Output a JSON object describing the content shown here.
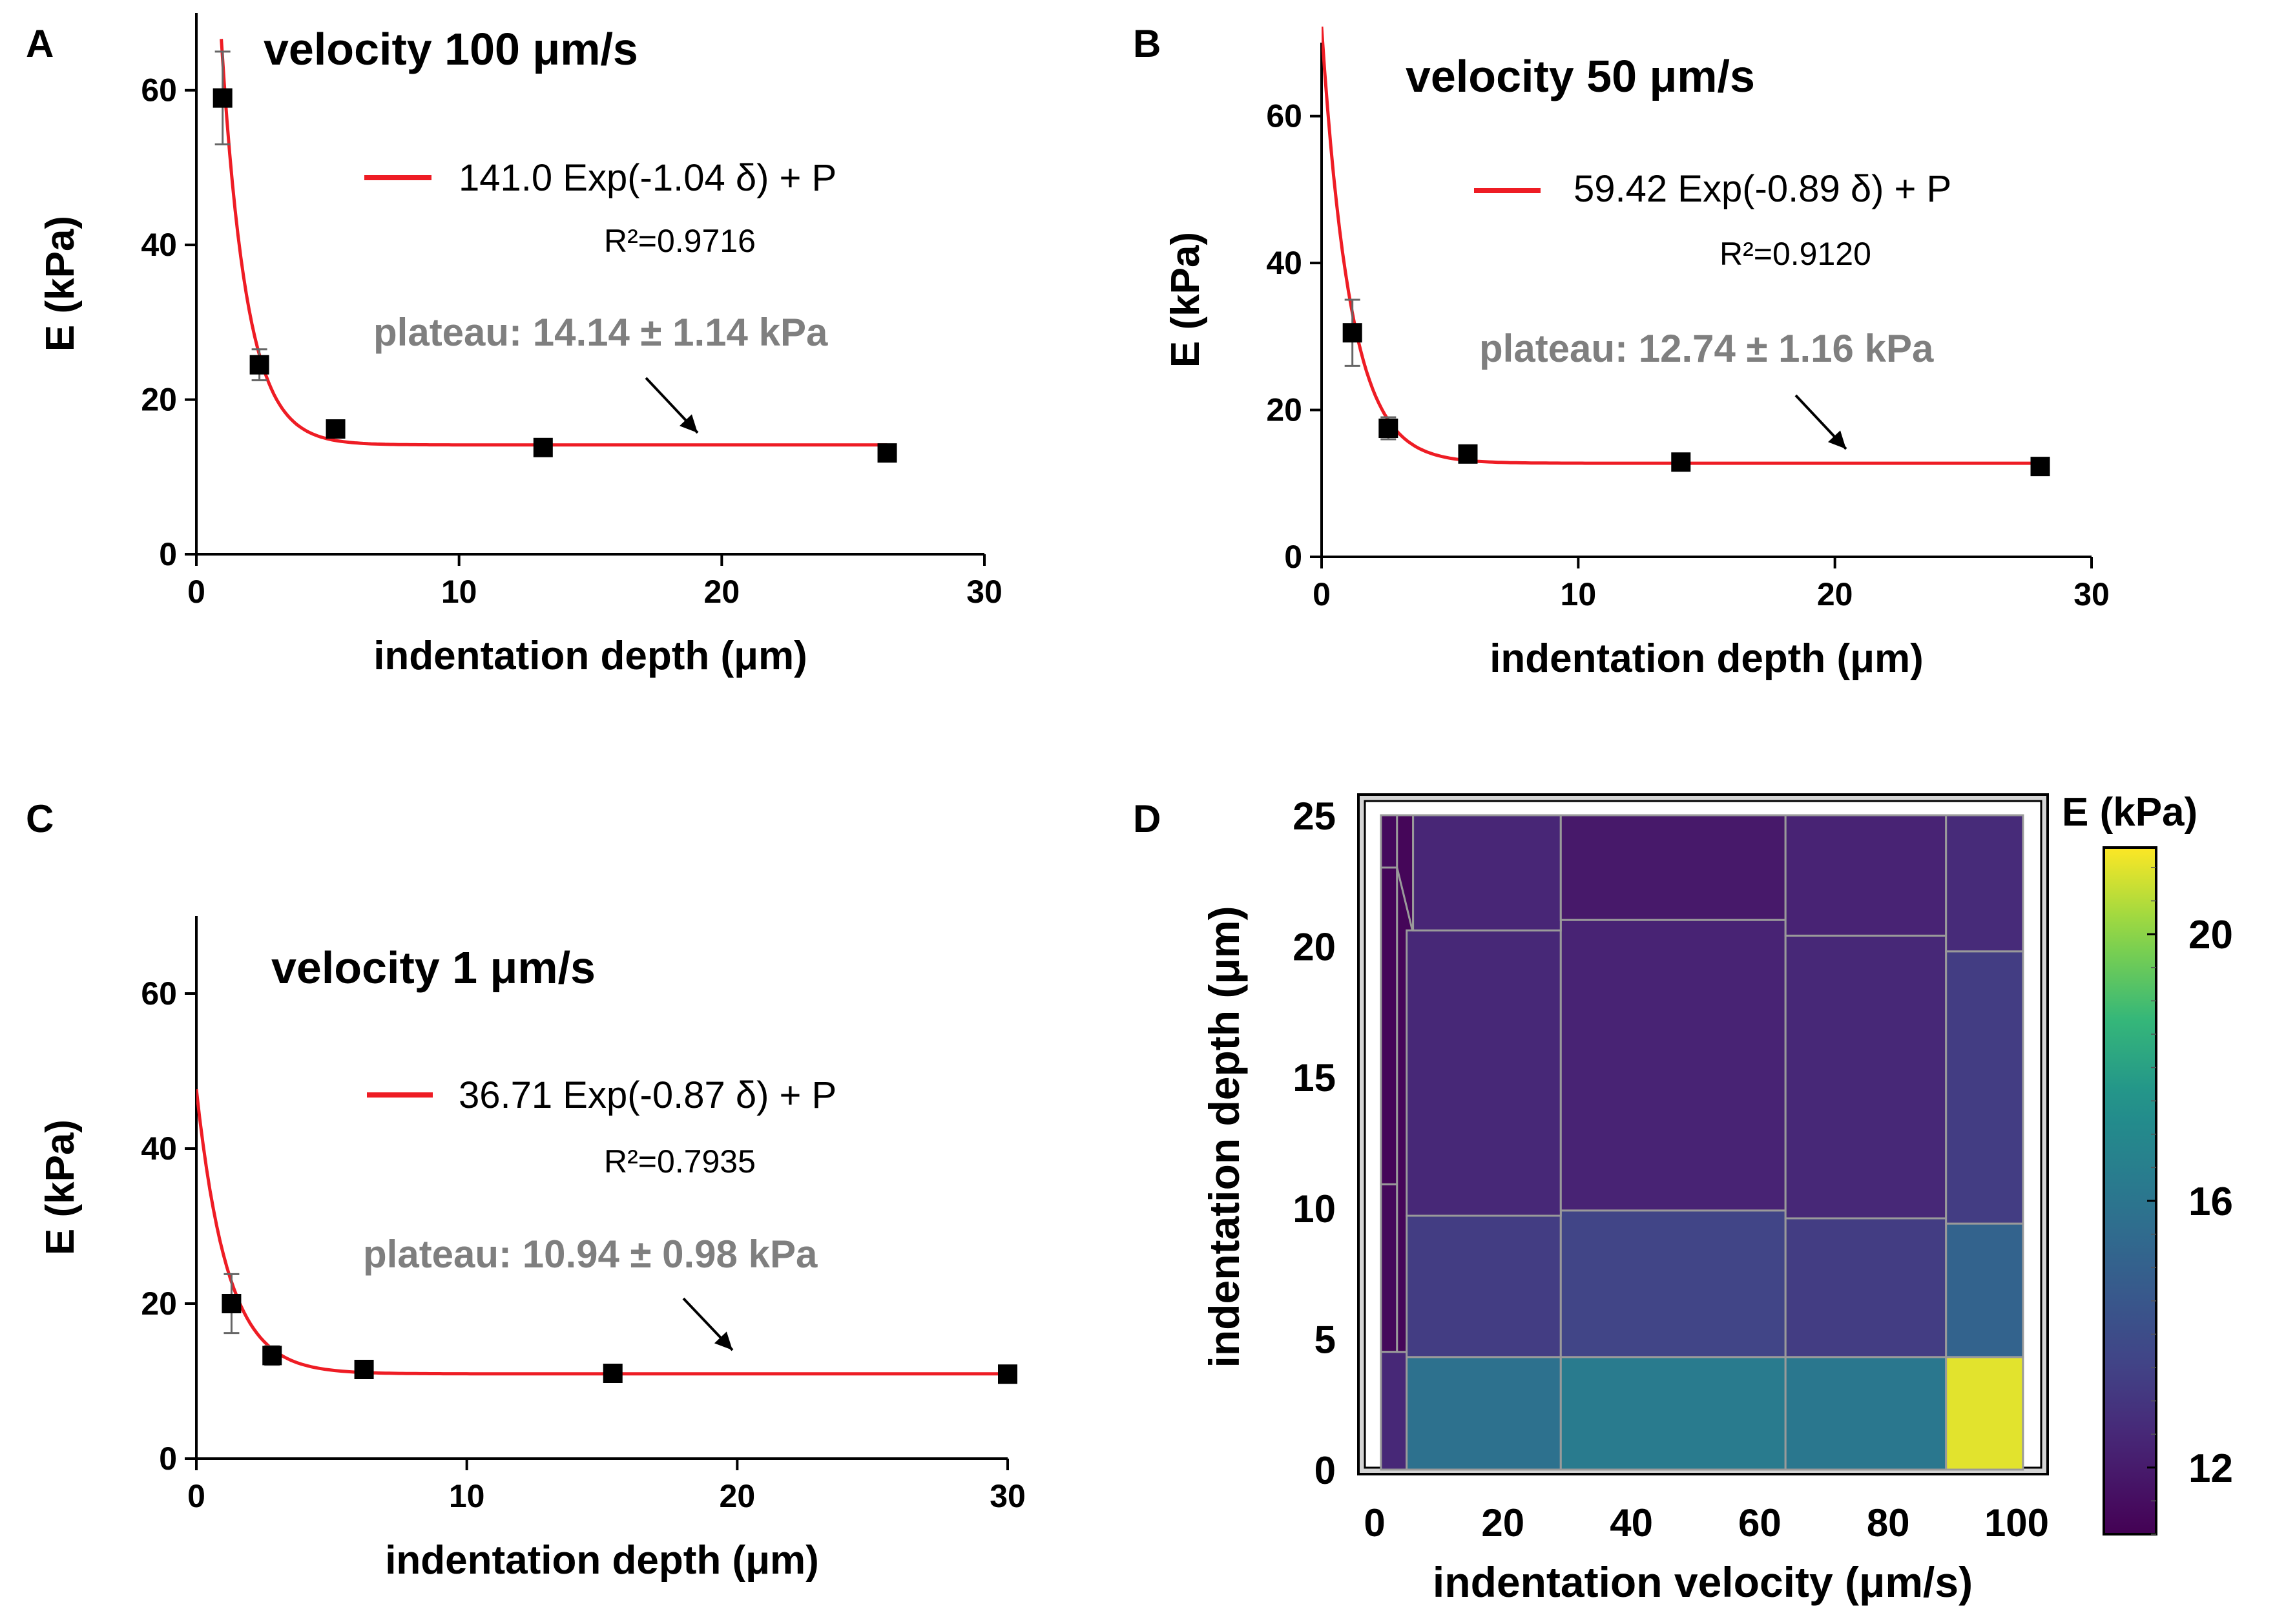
{
  "chart_data": [
    {
      "panel_label": "A",
      "type": "scatter",
      "title": "velocity  100 μm/s",
      "xlabel": "indentation depth (μm)",
      "ylabel": "E (kPa)",
      "xlim": [
        0,
        30
      ],
      "ylim": [
        0,
        70
      ],
      "xticks": [
        0,
        10,
        20,
        30
      ],
      "yticks": [
        0,
        20,
        40,
        60
      ],
      "fit": {
        "legend_label": "141.0 Exp(-1.04 δ) + P",
        "r2": "R²=0.9716",
        "a": 141.0,
        "b": 1.04,
        "plateau": 14.14,
        "x_start": 0.95,
        "x_end": 26.3,
        "color": "#ee1c24"
      },
      "plateau_annotation": "plateau: 14.14 ± 1.14 kPa",
      "points": [
        {
          "x": 1.0,
          "y": 59.0,
          "err": 6.0
        },
        {
          "x": 2.4,
          "y": 24.5,
          "err": 2.0
        },
        {
          "x": 5.3,
          "y": 16.2,
          "err": 0.8
        },
        {
          "x": 13.2,
          "y": 13.8,
          "err": 0.5
        },
        {
          "x": 26.3,
          "y": 13.1,
          "err": 0.5
        }
      ]
    },
    {
      "panel_label": "B",
      "type": "scatter",
      "title": "velocity  50 μm/s",
      "xlabel": "indentation depth (μm)",
      "ylabel": "E (kPa)",
      "xlim": [
        0,
        30
      ],
      "ylim": [
        0,
        70
      ],
      "xticks": [
        0,
        10,
        20,
        30
      ],
      "yticks": [
        0,
        20,
        40,
        60
      ],
      "fit": {
        "legend_label": "59.42 Exp(-0.89 δ) + P",
        "r2": "R²=0.9120",
        "a": 59.42,
        "b": 0.89,
        "plateau": 12.74,
        "x_start": 0.0,
        "x_end": 28.0,
        "color": "#ee1c24"
      },
      "plateau_annotation": "plateau: 12.74 ± 1.16 kPa",
      "points": [
        {
          "x": 1.2,
          "y": 30.5,
          "err": 4.5
        },
        {
          "x": 2.6,
          "y": 17.5,
          "err": 1.5
        },
        {
          "x": 5.7,
          "y": 14.0,
          "err": 0.8
        },
        {
          "x": 14.0,
          "y": 12.9,
          "err": 0.6
        },
        {
          "x": 28.0,
          "y": 12.3,
          "err": 0.5
        }
      ]
    },
    {
      "panel_label": "C",
      "type": "scatter",
      "title": "velocity  1 μm/s",
      "xlabel": "indentation depth (μm)",
      "ylabel": "E (kPa)",
      "xlim": [
        0,
        30
      ],
      "ylim": [
        0,
        70
      ],
      "xticks": [
        0,
        10,
        20,
        30
      ],
      "yticks": [
        0,
        20,
        40,
        60
      ],
      "fit": {
        "legend_label": "36.71 Exp(-0.87 δ) + P",
        "r2": "R²=0.7935",
        "a": 36.71,
        "b": 0.87,
        "plateau": 10.94,
        "x_start": 0.0,
        "x_end": 30.0,
        "color": "#ee1c24"
      },
      "plateau_annotation": "plateau: 10.94 ± 0.98 kPa",
      "points": [
        {
          "x": 1.3,
          "y": 20.0,
          "err": 3.8
        },
        {
          "x": 2.8,
          "y": 13.3,
          "err": 1.2
        },
        {
          "x": 6.2,
          "y": 11.5,
          "err": 0.8
        },
        {
          "x": 15.4,
          "y": 11.0,
          "err": 0.6
        },
        {
          "x": 30.0,
          "y": 10.9,
          "err": 0.6
        }
      ]
    },
    {
      "panel_label": "D",
      "type": "heatmap",
      "xlabel": "indentation velocity (μm/s)",
      "ylabel": "indentation depth (μm)",
      "xlim": [
        -2,
        101
      ],
      "ylim": [
        -0.5,
        26
      ],
      "xticks": [
        0,
        20,
        40,
        60,
        80,
        100
      ],
      "yticks": [
        0,
        5,
        10,
        15,
        20,
        25
      ],
      "colorbar_label": "E (kPa)",
      "colorbar_range": [
        11.0,
        21.3
      ],
      "colorbar_ticks": [
        12,
        16,
        20
      ],
      "cells": [
        {
          "poly": [
            [
              1,
              4.5
            ],
            [
              3.5,
              4.5
            ],
            [
              3.5,
              10.9
            ],
            [
              1,
              10.9
            ]
          ],
          "value": 11.3
        },
        {
          "poly": [
            [
              1,
              10.9
            ],
            [
              3.5,
              10.9
            ],
            [
              3.5,
              23
            ],
            [
              1,
              23
            ]
          ],
          "value": 11.2
        },
        {
          "poly": [
            [
              1,
              23
            ],
            [
              3.5,
              23
            ],
            [
              3.5,
              25
            ],
            [
              1,
              25
            ]
          ],
          "value": 11.35
        },
        {
          "poly": [
            [
              1,
              0
            ],
            [
              5,
              0
            ],
            [
              5,
              4.5
            ],
            [
              1,
              4.5
            ]
          ],
          "value": 12.5
        },
        {
          "poly": [
            [
              3.5,
              4.5
            ],
            [
              5,
              4.5
            ],
            [
              6,
              20.5
            ],
            [
              3.5,
              23
            ]
          ],
          "value": 11.2
        },
        {
          "poly": [
            [
              3.5,
              23
            ],
            [
              6,
              20.5
            ],
            [
              6,
              25
            ],
            [
              3.5,
              25
            ]
          ],
          "value": 11.2
        },
        {
          "poly": [
            [
              5,
              0
            ],
            [
              29,
              0
            ],
            [
              29,
              4.3
            ],
            [
              5,
              4.3
            ]
          ],
          "value": 15.8
        },
        {
          "poly": [
            [
              29,
              0
            ],
            [
              64,
              0
            ],
            [
              64,
              4.3
            ],
            [
              29,
              4.3
            ]
          ],
          "value": 16.3
        },
        {
          "poly": [
            [
              64,
              0
            ],
            [
              89,
              0
            ],
            [
              89,
              4.3
            ],
            [
              64,
              4.3
            ]
          ],
          "value": 16.1
        },
        {
          "poly": [
            [
              89,
              0
            ],
            [
              101,
              0
            ],
            [
              101,
              4.3
            ],
            [
              89,
              4.3
            ]
          ],
          "value": 21.0
        },
        {
          "poly": [
            [
              5,
              4.3
            ],
            [
              29,
              4.3
            ],
            [
              29,
              9.7
            ],
            [
              5,
              9.7
            ]
          ],
          "value": 13.3
        },
        {
          "poly": [
            [
              29,
              4.3
            ],
            [
              64,
              4.3
            ],
            [
              64,
              9.9
            ],
            [
              29,
              9.9
            ]
          ],
          "value": 13.6
        },
        {
          "poly": [
            [
              64,
              4.3
            ],
            [
              89,
              4.3
            ],
            [
              89,
              9.6
            ],
            [
              64,
              9.6
            ]
          ],
          "value": 13.3
        },
        {
          "poly": [
            [
              89,
              4.3
            ],
            [
              101,
              4.3
            ],
            [
              101,
              9.4
            ],
            [
              89,
              9.4
            ]
          ],
          "value": 15.1
        },
        {
          "poly": [
            [
              5,
              9.7
            ],
            [
              29,
              9.7
            ],
            [
              29,
              20.6
            ],
            [
              5,
              20.6
            ]
          ],
          "value": 12.5
        },
        {
          "poly": [
            [
              29,
              9.9
            ],
            [
              64,
              9.9
            ],
            [
              64,
              21.0
            ],
            [
              29,
              21.0
            ]
          ],
          "value": 12.3
        },
        {
          "poly": [
            [
              64,
              9.6
            ],
            [
              89,
              9.6
            ],
            [
              89,
              20.4
            ],
            [
              64,
              20.4
            ]
          ],
          "value": 12.5
        },
        {
          "poly": [
            [
              89,
              9.4
            ],
            [
              101,
              9.4
            ],
            [
              101,
              19.8
            ],
            [
              89,
              19.8
            ]
          ],
          "value": 13.3
        },
        {
          "poly": [
            [
              6,
              20.6
            ],
            [
              29,
              20.6
            ],
            [
              29,
              25
            ],
            [
              6,
              25
            ]
          ],
          "value": 12.4
        },
        {
          "poly": [
            [
              29,
              21.0
            ],
            [
              64,
              21.0
            ],
            [
              64,
              25
            ],
            [
              29,
              25
            ]
          ],
          "value": 11.9
        },
        {
          "poly": [
            [
              64,
              20.4
            ],
            [
              89,
              20.4
            ],
            [
              89,
              25
            ],
            [
              64,
              25
            ]
          ],
          "value": 12.3
        },
        {
          "poly": [
            [
              89,
              19.8
            ],
            [
              101,
              19.8
            ],
            [
              101,
              25
            ],
            [
              89,
              25
            ]
          ],
          "value": 12.6
        }
      ]
    }
  ]
}
